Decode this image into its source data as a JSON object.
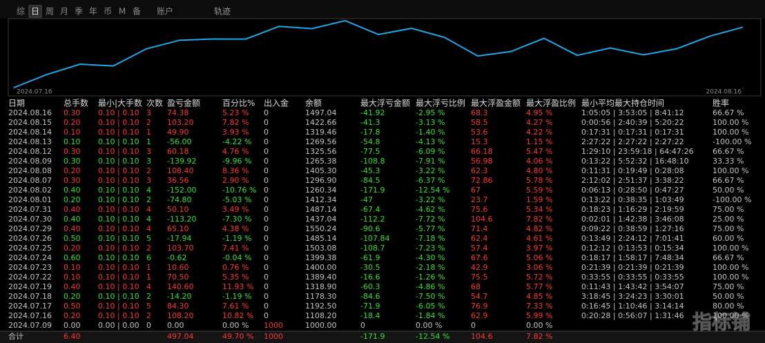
{
  "tabs": [
    "综",
    "日",
    "周",
    "月",
    "季",
    "年",
    "币",
    "M",
    "备",
    "账户"
  ],
  "active_tab": 1,
  "track_label": "轨迹",
  "chart_data": {
    "type": "line",
    "color": "#1ea8ea",
    "values": [
      1000,
      1108.2,
      1192.5,
      1178.3,
      1318.9,
      1389.4,
      1400,
      1399.38,
      1503.08,
      1485.14,
      1550.24,
      1437.04,
      1487.14,
      1412.34,
      1260.34,
      1296.9,
      1405.3,
      1265.38,
      1325.56,
      1269.56,
      1319.46,
      1422.66,
      1497.04
    ],
    "ylim": [
      1000,
      1550
    ],
    "xlim": [
      0,
      22
    ],
    "xticks": [
      {
        "value": 0,
        "label": "2024.07.16"
      },
      {
        "value": 22,
        "label": "2024.08.16"
      }
    ]
  },
  "table": {
    "headers": [
      "日期",
      "总手数",
      "最小|大手数",
      "次数",
      "盈亏金额",
      "百分比%",
      "出入金",
      "余额",
      "最大浮亏金额",
      "最大浮亏比例",
      "最大浮盈金额",
      "最大浮盈比例",
      "最小平均最大持仓时间",
      "胜率"
    ],
    "rows": [
      [
        "2024.08.16",
        "0.30",
        "0.10 | 0.10",
        "3",
        "74.38",
        "5.23 %",
        "0",
        "1497.04",
        "-41.92",
        "-2.95 %",
        "68.3",
        "4.95 %",
        "1:05:05 | 3:53:05 | 8:41:12",
        "66.67 %"
      ],
      [
        "2024.08.15",
        "0.20",
        "0.10 | 0.10",
        "2",
        "103.20",
        "7.82 %",
        "0",
        "1422.66",
        "-41.3",
        "-3.13 %",
        "58.5",
        "4.27 %",
        "0:00:56 | 2:40:39 | 5:20:22",
        "100.00 %"
      ],
      [
        "2024.08.14",
        "0.10",
        "0.10 | 0.10",
        "1",
        "49.90",
        "3.93 %",
        "0",
        "1319.46",
        "-17.8",
        "-1.40 %",
        "53.6",
        "4.22 %",
        "0:17:31 | 0:17:31 | 0:17:31",
        "100.00 %"
      ],
      [
        "2024.08.13",
        "0.10",
        "0.10 | 0.10",
        "1",
        "-56.00",
        "-4.22 %",
        "0",
        "1269.56",
        "-54.8",
        "-4.13 %",
        "15.3",
        "1.15 %",
        "2:27:22 | 2:27:22 | 2:27:22",
        "-100.00 %"
      ],
      [
        "2024.08.12",
        "0.30",
        "0.10 | 0.10",
        "3",
        "60.18",
        "4.76 %",
        "0",
        "1325.56",
        "-77.5",
        "-6.09 %",
        "66.18",
        "5.47 %",
        "1:29:10 | 23:59:18 | 64:47:26",
        "66.67 %"
      ],
      [
        "2024.08.09",
        "0.30",
        "0.10 | 0.10",
        "3",
        "-139.92",
        "-9.96 %",
        "0",
        "1265.38",
        "-108.8",
        "-7.91 %",
        "56.98",
        "4.06 %",
        "0:13:22 | 5:52:32 | 16:48:10",
        "33.33 %"
      ],
      [
        "2024.08.08",
        "0.20",
        "0.10 | 0.10",
        "2",
        "108.40",
        "8.36 %",
        "0",
        "1405.30",
        "-45.3",
        "-3.22 %",
        "62.3",
        "4.80 %",
        "0:11:31 | 0:19:49 | 0:28:08",
        "100.00 %"
      ],
      [
        "2024.08.07",
        "0.30",
        "0.10 | 0.10",
        "3",
        "36.56",
        "2.90 %",
        "0",
        "1296.90",
        "-84.5",
        "-6.37 %",
        "72.86",
        "5.78 %",
        "2:12:02 | 2:51:37 | 3:38:22",
        "66.67 %"
      ],
      [
        "2024.08.02",
        "0.40",
        "0.10 | 0.10",
        "4",
        "-152.00",
        "-10.76 %",
        "0",
        "1260.34",
        "-171.9",
        "-12.54 %",
        "67",
        "5.59 %",
        "0:06:13 | 0:28:50 | 0:47:27",
        "50.00 %"
      ],
      [
        "2024.08.01",
        "0.20",
        "0.10 | 0.10",
        "2",
        "-74.80",
        "-5.03 %",
        "0",
        "1412.34",
        "-47",
        "-3.22 %",
        "23.7",
        "1.59 %",
        "0:13:22 | 0:38:35 | 1:03:49",
        "-100.00 %"
      ],
      [
        "2024.07.31",
        "0.40",
        "0.10 | 0.10",
        "4",
        "50.10",
        "3.49 %",
        "0",
        "1487.14",
        "-67.4",
        "-4.62 %",
        "75.6",
        "5.34 %",
        "0:18:23 | 1:16:29 | 2:19:59",
        "75.00 %"
      ],
      [
        "2024.07.30",
        "0.40",
        "0.10 | 0.10",
        "4",
        "-113.20",
        "-7.30 %",
        "0",
        "1437.04",
        "-112.2",
        "-7.72 %",
        "104.6",
        "7.82 %",
        "0:02:01 | 1:42:38 | 3:46:08",
        "25.00 %"
      ],
      [
        "2024.07.29",
        "0.40",
        "0.10 | 0.10",
        "4",
        "65.10",
        "4.38 %",
        "0",
        "1550.24",
        "-90.6",
        "-5.77 %",
        "71.4",
        "4.82 %",
        "0:09:22 | 0:38:59 | 1:27:16",
        "75.00 %"
      ],
      [
        "2024.07.26",
        "0.50",
        "0.10 | 0.10",
        "5",
        "-17.94",
        "-1.19 %",
        "0",
        "1485.14",
        "-107.84",
        "-7.18 %",
        "62.4",
        "4.61 %",
        "0:13:49 | 2:24:12 | 7:01:41",
        "60.00 %"
      ],
      [
        "2024.07.25",
        "0.20",
        "0.10 | 0.10",
        "2",
        "103.70",
        "7.41 %",
        "0",
        "1503.08",
        "-108.7",
        "-7.23 %",
        "57.4",
        "3.97 %",
        "0:12:12 | 0:13:53 | 0:15:34",
        "100.00 %"
      ],
      [
        "2024.07.24",
        "0.60",
        "0.10 | 0.10",
        "6",
        "-0.62",
        "-0.04 %",
        "0",
        "1399.38",
        "-61.9",
        "-4.30 %",
        "67.6",
        "5.06 %",
        "0:18:17 | 1:58:17 | 7:48:34",
        "66.67 %"
      ],
      [
        "2024.07.23",
        "0.10",
        "0.10 | 0.10",
        "1",
        "10.60",
        "0.76 %",
        "0",
        "1400.00",
        "-30.5",
        "-2.18 %",
        "42.9",
        "3.06 %",
        "0:21:39 | 0:21:39 | 0:21:39",
        "100.00 %"
      ],
      [
        "2024.07.22",
        "0.10",
        "0.10 | 0.10",
        "1",
        "70.50",
        "5.35 %",
        "0",
        "1389.40",
        "-16.6",
        "-1.26 %",
        "75.5",
        "5.72 %",
        "0:33:55 | 0:33:55 | 0:33:55",
        "100.00 %"
      ],
      [
        "2024.07.19",
        "0.40",
        "0.10 | 0.10",
        "4",
        "140.60",
        "11.93 %",
        "0",
        "1318.90",
        "-60.3",
        "-4.86 %",
        "68",
        "5.77 %",
        "0:11:43 | 1:43:42 | 3:54:07",
        "75.00 %"
      ],
      [
        "2024.07.18",
        "0.20",
        "0.10 | 0.10",
        "2",
        "-14.20",
        "-1.19 %",
        "0",
        "1178.30",
        "-84.6",
        "-7.50 %",
        "54.7",
        "4.85 %",
        "3:18:45 | 3:24:23 | 3:30:01",
        "50.00 %"
      ],
      [
        "2024.07.17",
        "0.50",
        "0.10 | 0.10",
        "5",
        "84.30",
        "7.61 %",
        "0",
        "1192.50",
        "-71.9",
        "-6.05 %",
        "76.9",
        "7.33 %",
        "0:16:45 | 1:10:46 | 3:14:14",
        "80.00 %"
      ],
      [
        "2024.07.16",
        "0.20",
        "0.10 | 0.10",
        "2",
        "108.20",
        "10.82 %",
        "0",
        "1108.20",
        "-18.4",
        "-1.84 %",
        "62.9",
        "5.99 %",
        "0:20:28 | 0:56:07 | 1:31:46",
        "100.00 %"
      ],
      [
        "2024.07.09",
        "0.00",
        "0.00 | 0.00",
        "0",
        "0.00",
        "0.00 %",
        "1000",
        "1000.00",
        "0",
        "0.00 %",
        "0",
        "0.00 %"
      ]
    ],
    "total": [
      "合计",
      "6.40",
      null,
      null,
      "497.04",
      "49.70 %",
      "1000",
      null,
      "-171.9",
      "-12.54 %",
      "104.6",
      "7.82 %"
    ]
  },
  "watermark": "指标铺",
  "colors": {
    "up": "#ff3535",
    "down": "#35e035",
    "text": "#c4c4c4"
  }
}
